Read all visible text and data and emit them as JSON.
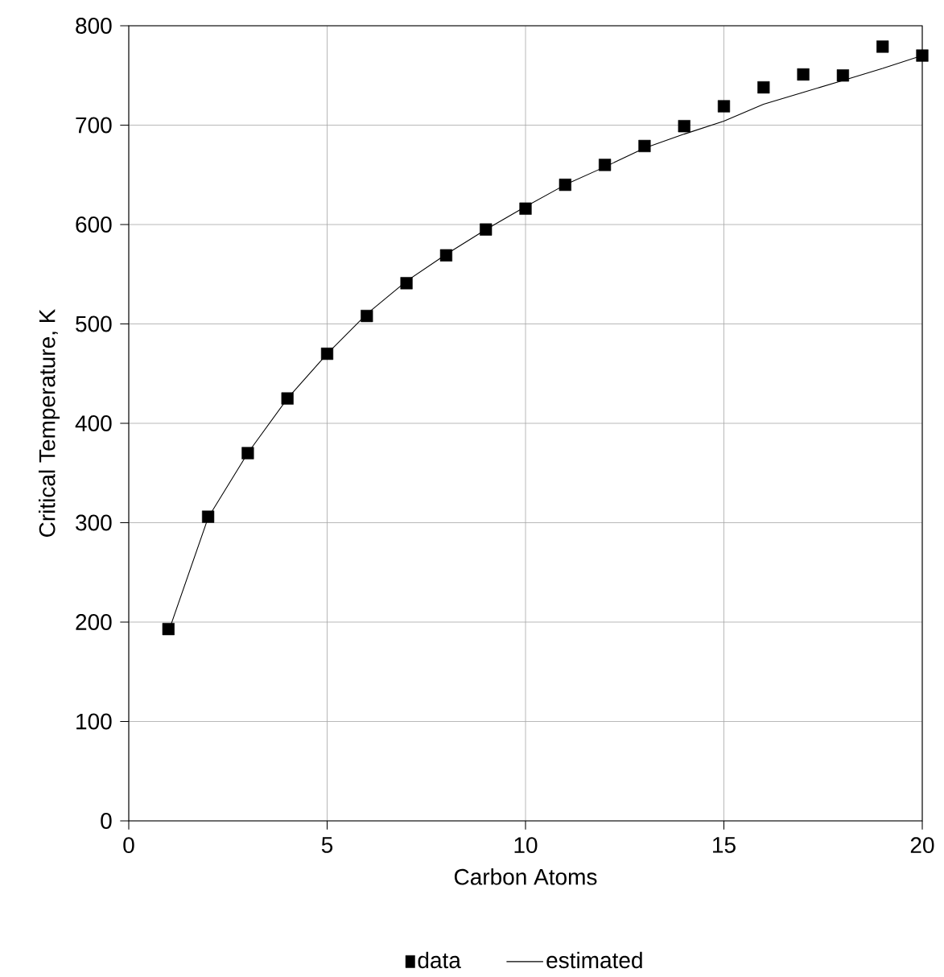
{
  "chart_data": {
    "type": "scatter",
    "xlabel": "Carbon Atoms",
    "ylabel": "Critical Temperature, K",
    "xlim": [
      0,
      20
    ],
    "ylim": [
      0,
      800
    ],
    "xticks": [
      0,
      5,
      10,
      15,
      20
    ],
    "yticks": [
      0,
      100,
      200,
      300,
      400,
      500,
      600,
      700,
      800
    ],
    "grid": true,
    "legend": "bottom",
    "series": [
      {
        "name": "data",
        "marker": "square",
        "color": "#000000",
        "x": [
          1,
          2,
          3,
          4,
          5,
          6,
          7,
          8,
          9,
          10,
          11,
          12,
          13,
          14,
          15,
          16,
          17,
          18,
          19,
          20
        ],
        "values": [
          193,
          306,
          370,
          425,
          470,
          508,
          541,
          569,
          595,
          616,
          640,
          660,
          679,
          699,
          719,
          738,
          751,
          750,
          779,
          770
        ]
      },
      {
        "name": "estimated",
        "type": "line",
        "marker": "none",
        "line_style": "solid",
        "color": "#000000",
        "x": [
          1,
          2,
          3,
          4,
          5,
          6,
          7,
          8,
          9,
          10,
          11,
          12,
          13,
          14,
          15,
          16,
          17,
          18,
          19,
          20
        ],
        "values": [
          190,
          305,
          370,
          425,
          470,
          510,
          543,
          570,
          595,
          618,
          640,
          658,
          677,
          691,
          704,
          721,
          733,
          745,
          757,
          770
        ]
      }
    ]
  }
}
